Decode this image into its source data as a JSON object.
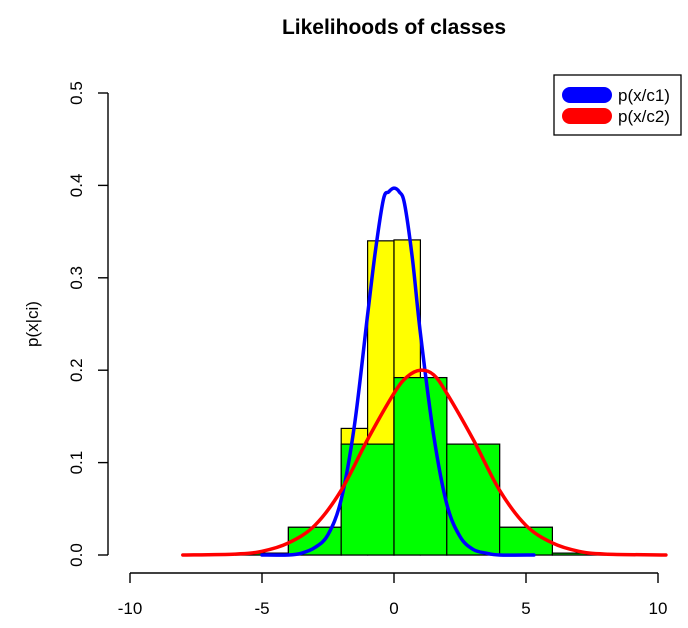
{
  "chart_data": {
    "type": "bar",
    "title": "Likelihoods of classes",
    "xlabel": "",
    "ylabel": "p(x|ci)",
    "xlim": [
      -10,
      10
    ],
    "ylim": [
      0,
      0.5
    ],
    "x_ticks": [
      "-10",
      "-5",
      "0",
      "5",
      "10"
    ],
    "y_ticks": [
      "0.0",
      "0.1",
      "0.2",
      "0.3",
      "0.4",
      "0.5"
    ],
    "histograms": [
      {
        "color": "#ffff00",
        "bin_edges": [
          -6,
          -4,
          -2,
          -1,
          0,
          1,
          2,
          4,
          6,
          8
        ],
        "densities": [
          0.002,
          0.03,
          0.137,
          0.34,
          0.341,
          0.192,
          0.12,
          0.03,
          0.002
        ]
      },
      {
        "color": "#00ff00",
        "bin_edges": [
          -6,
          -4,
          -2,
          0,
          2,
          4,
          6,
          8
        ],
        "densities": [
          0.002,
          0.03,
          0.12,
          0.192,
          0.12,
          0.03,
          0.002
        ]
      }
    ],
    "series": [
      {
        "name": "p(x/c1)",
        "color": "#0000ff",
        "x": [
          -5.0,
          -4.0,
          -3.5,
          -3.0,
          -2.5,
          -2.0,
          -1.5,
          -1.0,
          -0.7,
          -0.4,
          -0.2,
          0.0,
          0.2,
          0.4,
          0.7,
          1.0,
          1.5,
          2.0,
          2.5,
          3.0,
          3.5,
          4.0,
          5.3
        ],
        "y": [
          0.0,
          0.0,
          0.002,
          0.008,
          0.022,
          0.06,
          0.14,
          0.26,
          0.33,
          0.385,
          0.393,
          0.397,
          0.393,
          0.38,
          0.32,
          0.24,
          0.13,
          0.055,
          0.02,
          0.006,
          0.002,
          0.0,
          0.0
        ]
      },
      {
        "name": "p(x/c2)",
        "color": "#ff0000",
        "x": [
          -8.0,
          -6.0,
          -5.0,
          -4.0,
          -3.0,
          -2.0,
          -1.0,
          0.0,
          0.5,
          1.0,
          1.5,
          2.0,
          3.0,
          4.0,
          5.0,
          6.0,
          7.0,
          8.0,
          10.3
        ],
        "y": [
          0.0,
          0.001,
          0.004,
          0.013,
          0.032,
          0.07,
          0.125,
          0.175,
          0.193,
          0.2,
          0.195,
          0.175,
          0.125,
          0.07,
          0.032,
          0.013,
          0.004,
          0.001,
          0.0
        ]
      }
    ],
    "legend": {
      "position": "top-right"
    }
  }
}
